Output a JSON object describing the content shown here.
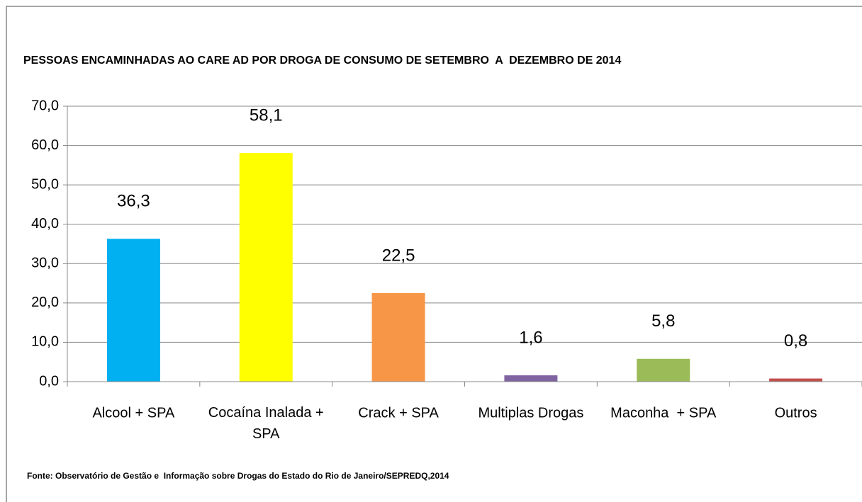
{
  "chart_data": {
    "type": "bar",
    "title": "PESSOAS ENCAMINHADAS AO CARE AD POR DROGA DE CONSUMO DE SETEMBRO  A  DEZEMBRO DE 2014",
    "source": "Fonte: Observatório de Gestão e  Informação sobre Drogas do Estado do Rio de Janeiro/SEPREDQ,2014",
    "categories": [
      "Alcool + SPA",
      "Cocaína Inalada + SPA",
      "Crack + SPA",
      "Multiplas Drogas",
      "Maconha  + SPA",
      "Outros"
    ],
    "values": [
      36.3,
      58.1,
      22.5,
      1.6,
      5.8,
      0.8
    ],
    "value_labels": [
      "36,3",
      "58,1",
      "22,5",
      "1,6",
      "5,8",
      "0,8"
    ],
    "colors": [
      "#00b0f0",
      "#ffff00",
      "#f79646",
      "#8064a2",
      "#9bbb59",
      "#c0504d"
    ],
    "ylim": [
      0,
      70
    ],
    "yticks": [
      {
        "value": 0,
        "label": "0,0"
      },
      {
        "value": 10,
        "label": "10,0"
      },
      {
        "value": 20,
        "label": "20,0"
      },
      {
        "value": 30,
        "label": "30,0"
      },
      {
        "value": 40,
        "label": "40,0"
      },
      {
        "value": 50,
        "label": "50,0"
      },
      {
        "value": 60,
        "label": "60,0"
      },
      {
        "value": 70,
        "label": "70,0"
      }
    ],
    "grid": true
  }
}
